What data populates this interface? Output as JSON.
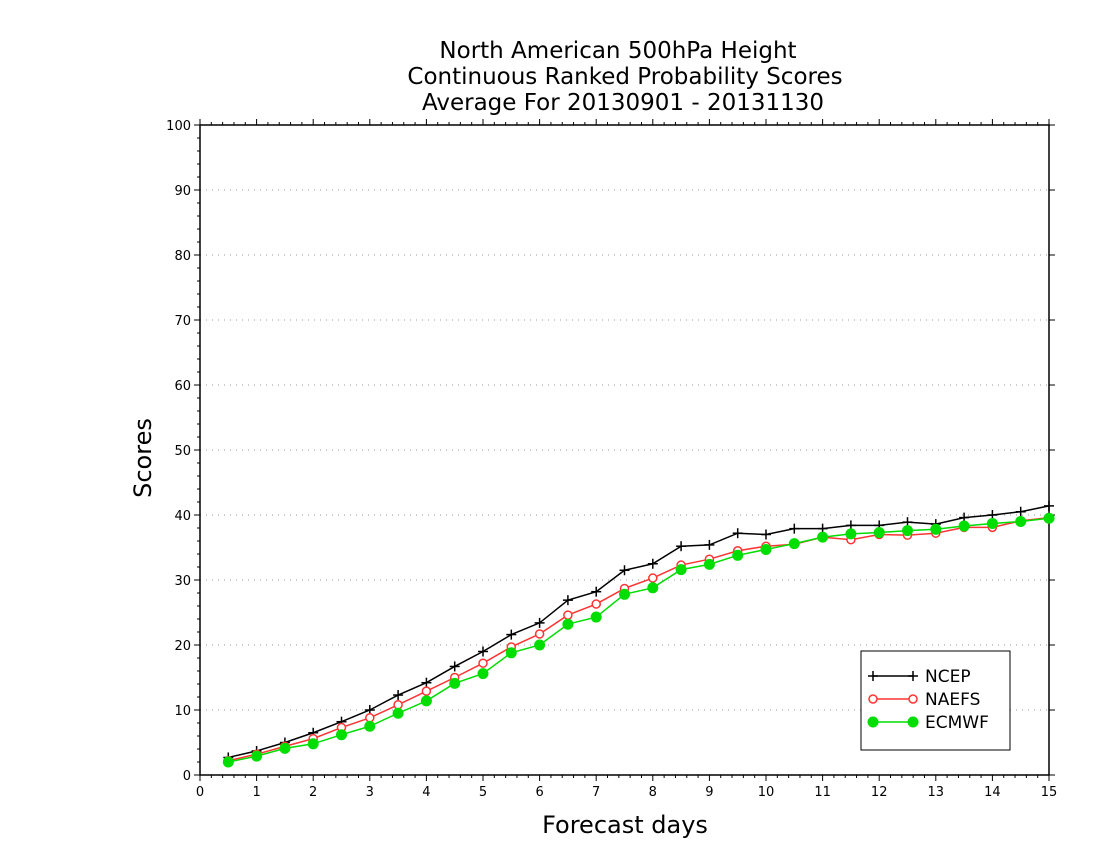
{
  "chart_data": {
    "type": "line",
    "title": [
      "North American 500hPa Height",
      "Continuous Ranked Probability Scores",
      "Average For 20130901 - 20131130"
    ],
    "xlabel": "Forecast days",
    "ylabel": "Scores",
    "xlim": [
      0,
      15
    ],
    "ylim": [
      0,
      100
    ],
    "x_ticks": [
      "0",
      "1",
      "2",
      "3",
      "4",
      "5",
      "6",
      "7",
      "8",
      "9",
      "10",
      "11",
      "12",
      "13",
      "14",
      "15"
    ],
    "y_ticks": [
      "0",
      "10",
      "20",
      "30",
      "40",
      "50",
      "60",
      "70",
      "80",
      "90",
      "100"
    ],
    "grid": "horizontal dotted",
    "legend_position": "bottom-right",
    "x": [
      0.5,
      1,
      1.5,
      2,
      2.5,
      3,
      3.5,
      4,
      4.5,
      5,
      5.5,
      6,
      6.5,
      7,
      7.5,
      8,
      8.5,
      9,
      9.5,
      10,
      10.5,
      11,
      11.5,
      12,
      12.5,
      13,
      13.5,
      14,
      14.5,
      15
    ],
    "series": [
      {
        "name": "NCEP",
        "color": "#000000",
        "marker": "plus",
        "values": [
          2.7,
          3.7,
          5.0,
          6.5,
          8.2,
          10.0,
          12.3,
          14.2,
          16.7,
          19.0,
          21.6,
          23.4,
          26.9,
          28.2,
          31.5,
          32.5,
          35.2,
          35.4,
          37.2,
          37.0,
          37.9,
          37.9,
          38.4,
          38.4,
          38.9,
          38.6,
          39.6,
          40.0,
          40.5,
          41.4
        ]
      },
      {
        "name": "NAEFS",
        "color": "#ff3333",
        "marker": "open-circle",
        "values": [
          2.2,
          3.2,
          4.4,
          5.6,
          7.3,
          8.8,
          10.8,
          12.9,
          15.0,
          17.2,
          19.7,
          21.7,
          24.6,
          26.3,
          28.7,
          30.3,
          32.3,
          33.2,
          34.5,
          35.2,
          35.5,
          36.6,
          36.2,
          37.0,
          36.9,
          37.2,
          38.1,
          38.1,
          39.1,
          39.6
        ]
      },
      {
        "name": "ECMWF",
        "color": "#00dd00",
        "marker": "filled-circle",
        "values": [
          2.0,
          2.9,
          4.1,
          4.8,
          6.2,
          7.5,
          9.5,
          11.4,
          14.1,
          15.6,
          18.8,
          20.0,
          23.2,
          24.3,
          27.8,
          28.8,
          31.6,
          32.4,
          33.8,
          34.7,
          35.6,
          36.6,
          37.1,
          37.3,
          37.6,
          37.8,
          38.3,
          38.7,
          39.0,
          39.5
        ]
      }
    ]
  }
}
